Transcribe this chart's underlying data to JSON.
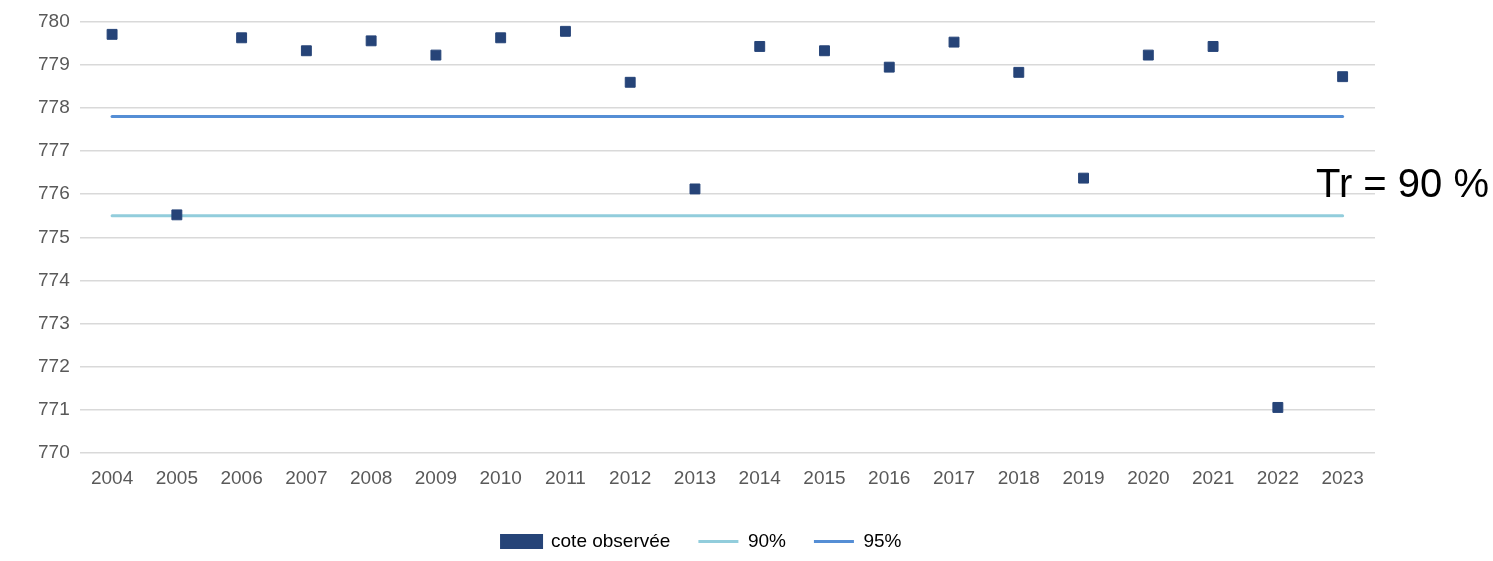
{
  "chart_data": {
    "type": "line",
    "categories": [
      "2004",
      "2005",
      "2006",
      "2007",
      "2008",
      "2009",
      "2010",
      "2011",
      "2012",
      "2013",
      "2014",
      "2015",
      "2016",
      "2017",
      "2018",
      "2019",
      "2020",
      "2021",
      "2022",
      "2023"
    ],
    "series": [
      {
        "name": "cote observée",
        "type": "scatter",
        "marker": "square",
        "color": "#264478",
        "values": [
          779.7,
          775.52,
          779.62,
          779.32,
          779.55,
          779.22,
          779.62,
          779.77,
          778.59,
          776.12,
          779.42,
          779.32,
          778.94,
          779.52,
          778.82,
          776.37,
          779.22,
          779.42,
          771.06,
          778.72
        ]
      },
      {
        "name": "90%",
        "marker": "none",
        "color": "#92cddc",
        "values": [
          775.5,
          775.5,
          775.5,
          775.5,
          775.5,
          775.5,
          775.5,
          775.5,
          775.5,
          775.5,
          775.5,
          775.5,
          775.5,
          775.5,
          775.5,
          775.5,
          775.5,
          775.5,
          775.5,
          775.5
        ]
      },
      {
        "name": "95%",
        "marker": "none",
        "color": "#558ed5",
        "values": [
          777.8,
          777.8,
          777.8,
          777.8,
          777.8,
          777.8,
          777.8,
          777.8,
          777.8,
          777.8,
          777.8,
          777.8,
          777.8,
          777.8,
          777.8,
          777.8,
          777.8,
          777.8,
          777.8,
          777.8
        ]
      }
    ],
    "ylim": [
      770,
      780
    ],
    "yticks": [
      770,
      771,
      772,
      773,
      774,
      775,
      776,
      777,
      778,
      779,
      780
    ],
    "grid": "y",
    "legend": "bottom",
    "annotations": [
      "Tr = 90 %"
    ]
  }
}
